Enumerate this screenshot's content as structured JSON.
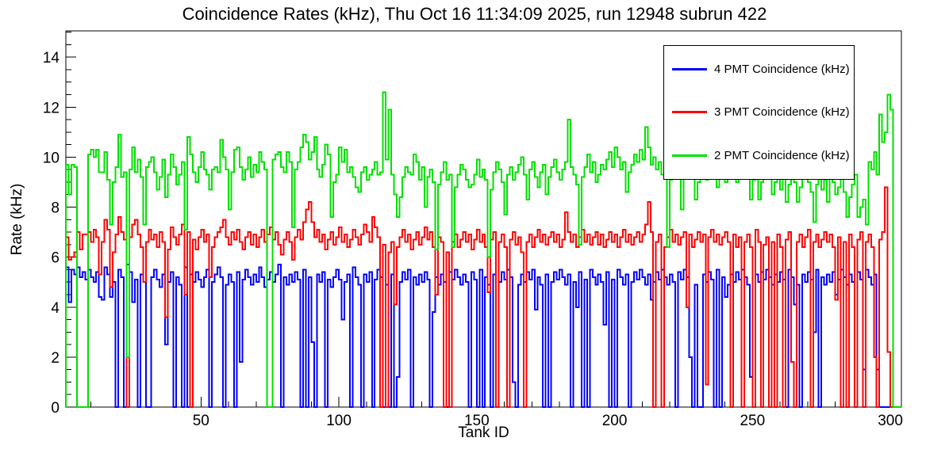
{
  "title": "Coincidence Rates (kHz), Thu Oct 16 11:34:09 2025, run 12948 subrun 422",
  "legend": {
    "entries": [
      {
        "label": "4 PMT Coincidence (kHz)",
        "color": "#0000ff"
      },
      {
        "label": "3 PMT Coincidence (kHz)",
        "color": "#ff0000"
      },
      {
        "label": "2 PMT Coincidence (kHz)",
        "color": "#00e000"
      }
    ]
  },
  "chart_data": {
    "type": "line",
    "style": "step-histogram",
    "title": "Coincidence Rates (kHz), Thu Oct 16 11:34:09 2025, run 12948 subrun 422",
    "xlabel": "Tank ID",
    "ylabel": "Rate (kHz)",
    "xlim": [
      1,
      304
    ],
    "ylim": [
      0,
      15.05
    ],
    "xticks": [
      50,
      100,
      150,
      200,
      250,
      300
    ],
    "yticks": [
      0,
      2,
      4,
      6,
      8,
      10,
      12,
      14
    ],
    "x_minor_step": 10,
    "y_minor_step": 0.5,
    "x_bin_start": 1,
    "bin_width": 1,
    "grid": false,
    "legend_position": "top-right",
    "series": [
      {
        "name": "4 PMT Coincidence (kHz)",
        "color": "#0000ff",
        "values": [
          5.6,
          4.2,
          5.5,
          5.3,
          5.6,
          5.2,
          5.4,
          5.1,
          5.5,
          5.2,
          5.0,
          5.4,
          4.4,
          4.3,
          5.6,
          5.3,
          4.4,
          5.0,
          0,
          5.5,
          5.2,
          0,
          5.7,
          5.4,
          4.2,
          5.1,
          0,
          5.3,
          5.0,
          0,
          0,
          5.2,
          5.5,
          5.1,
          4.8,
          5.3,
          2.5,
          5.0,
          5.4,
          0,
          5.2,
          4.9,
          0,
          5.6,
          0,
          5.3,
          5.0,
          5.4,
          5.1,
          4.8,
          5.2,
          5.5,
          0,
          5.0,
          5.3,
          5.6,
          5.2,
          0,
          4.9,
          5.3,
          5.0,
          0,
          5.4,
          1.8,
          5.1,
          5.5,
          5.2,
          4.9,
          5.3,
          5.0,
          5.6,
          5.2,
          4.8,
          5.1,
          5.4,
          5.0,
          5.3,
          5.7,
          0,
          5.2,
          4.9,
          5.3,
          5.0,
          5.4,
          5.1,
          0,
          5.5,
          0,
          5.2,
          2.6,
          0,
          5.3,
          5.0,
          5.4,
          0,
          5.1,
          4.8,
          5.2,
          5.5,
          5.1,
          3.5,
          5.0,
          5.3,
          0,
          5.6,
          5.2,
          4.9,
          0,
          5.3,
          5.0,
          5.4,
          0,
          5.1,
          5.5,
          5.2,
          0,
          4.9,
          0,
          5.3,
          0,
          1.2,
          5.0,
          5.4,
          5.1,
          5.5,
          0,
          5.2,
          4.9,
          5.3,
          5.0,
          5.4,
          5.1,
          0,
          3.8,
          5.2,
          4.9,
          5.3,
          5.0,
          0,
          5.4,
          5.1,
          5.5,
          5.2,
          4.9,
          5.3,
          5.0,
          0,
          5.4,
          5.1,
          0,
          5.5,
          0,
          5.2,
          4.9,
          0,
          5.3,
          0,
          5.0,
          5.4,
          5.1,
          5.5,
          5.2,
          1.0,
          0,
          4.9,
          5.3,
          5.0,
          5.4,
          5.1,
          5.5,
          3.9,
          5.2,
          4.9,
          0,
          5.3,
          0,
          5.0,
          5.4,
          5.1,
          5.5,
          5.2,
          4.9,
          5.3,
          0,
          5.0,
          4.0,
          5.4,
          0,
          5.1,
          0,
          5.5,
          5.2,
          4.9,
          5.3,
          5.0,
          3.3,
          5.4,
          0,
          5.1,
          0,
          5.5,
          5.2,
          4.9,
          5.3,
          0,
          5.0,
          5.4,
          5.1,
          5.5,
          5.2,
          4.9,
          5.3,
          4.3,
          5.0,
          5.4,
          5.1,
          5.5,
          5.2,
          4.9,
          5.3,
          5.0,
          0,
          5.4,
          5.1,
          5.5,
          5.2,
          2.0,
          0,
          4.9,
          0,
          0,
          5.3,
          5.0,
          5.4,
          5.1,
          0,
          5.5,
          0,
          5.2,
          4.4,
          4.9,
          5.3,
          5.0,
          5.4,
          5.1,
          5.5,
          5.2,
          4.9,
          1.2,
          0,
          5.3,
          5.0,
          5.4,
          5.1,
          5.5,
          5.2,
          4.9,
          5.3,
          5.0,
          5.4,
          5.1,
          0,
          5.5,
          5.2,
          4.1,
          4.9,
          0,
          5.3,
          5.0,
          5.4,
          5.1,
          3.0,
          5.5,
          0,
          5.2,
          4.9,
          5.3,
          5.0,
          5.4,
          4.5,
          5.1,
          5.5,
          5.2,
          4.9,
          5.3,
          5.0,
          0,
          5.4,
          5.1,
          1.5,
          5.5,
          5.2,
          4.9,
          5.3,
          1.5,
          0,
          0,
          0,
          0,
          0,
          0,
          0,
          0
        ]
      },
      {
        "name": "3 PMT Coincidence (kHz)",
        "color": "#ff0000",
        "values": [
          6.8,
          5.9,
          6.0,
          6.2,
          7.0,
          6.3,
          6.9,
          6.9,
          7.0,
          6.6,
          7.1,
          6.8,
          5.3,
          6.6,
          7.5,
          7.1,
          4.8,
          6.2,
          6.9,
          7.6,
          7.0,
          6.7,
          0,
          6.8,
          7.3,
          7.5,
          6.9,
          6.4,
          5.0,
          6.6,
          7.1,
          6.7,
          6.9,
          6.4,
          7.0,
          6.6,
          3.6,
          6.3,
          7.2,
          6.8,
          6.5,
          6.9,
          7.3,
          4.5,
          7.0,
          0,
          6.7,
          6.3,
          6.8,
          7.1,
          6.6,
          6.9,
          5.2,
          6.4,
          6.8,
          7.0,
          7.2,
          7.5,
          6.8,
          6.5,
          7.0,
          6.7,
          7.1,
          6.6,
          6.3,
          6.8,
          7.0,
          6.5,
          6.9,
          6.4,
          6.8,
          7.1,
          6.6,
          6.9,
          7.2,
          6.7,
          7.0,
          6.5,
          6.1,
          6.7,
          7.0,
          6.6,
          5.9,
          6.8,
          7.1,
          6.7,
          7.4,
          7.9,
          8.2,
          7.4,
          6.8,
          7.1,
          6.6,
          6.9,
          6.3,
          6.7,
          7.0,
          6.5,
          6.8,
          7.2,
          6.6,
          6.9,
          6.4,
          6.7,
          7.1,
          6.8,
          6.5,
          6.9,
          7.3,
          7.0,
          6.6,
          7.6,
          7.2,
          6.8,
          0,
          6.5,
          0,
          6.2,
          6.6,
          4.1,
          6.4,
          6.8,
          7.1,
          6.6,
          6.9,
          6.3,
          6.7,
          7.0,
          6.5,
          6.8,
          7.2,
          6.7,
          7.0,
          6.4,
          4.5,
          6.8,
          6.6,
          0,
          6.2,
          0,
          6.6,
          6.9,
          6.4,
          6.7,
          7.0,
          6.6,
          6.9,
          6.3,
          6.7,
          7.1,
          6.6,
          6.9,
          6.4,
          4.6,
          6.7,
          7.0,
          0,
          6.6,
          6.9,
          6.4,
          0,
          6.7,
          7.0,
          6.5,
          6.8,
          6.2,
          0,
          6.6,
          6.9,
          6.4,
          6.8,
          7.1,
          6.6,
          6.9,
          6.5,
          6.8,
          7.0,
          6.6,
          6.9,
          6.4,
          6.7,
          7.8,
          7.0,
          6.6,
          6.9,
          6.4,
          6.8,
          7.1,
          6.6,
          6.9,
          6.5,
          6.8,
          7.0,
          6.5,
          6.9,
          6.4,
          6.7,
          7.0,
          6.6,
          6.9,
          6.4,
          6.8,
          7.1,
          6.6,
          6.9,
          6.5,
          6.8,
          7.0,
          6.6,
          6.9,
          7.3,
          8.2,
          7.0,
          0,
          6.6,
          6.9,
          0,
          6.4,
          6.8,
          7.1,
          6.6,
          6.9,
          6.5,
          6.8,
          7.0,
          4.0,
          6.9,
          6.4,
          6.7,
          7.0,
          6.6,
          6.9,
          0.9,
          6.8,
          7.1,
          6.6,
          6.9,
          6.5,
          6.8,
          7.0,
          6.6,
          0,
          6.9,
          6.4,
          6.8,
          0,
          6.6,
          6.9,
          6.4,
          0,
          7.1,
          6.6,
          0,
          6.5,
          6.8,
          0,
          6.6,
          0,
          6.9,
          6.4,
          0,
          6.7,
          7.0,
          1.8,
          0,
          6.6,
          6.9,
          6.4,
          6.8,
          7.1,
          0,
          6.6,
          6.9,
          6.4,
          6.7,
          7.0,
          6.6,
          6.9,
          6.4,
          4.3,
          6.8,
          0,
          6.6,
          0,
          6.9,
          6.4,
          0,
          6.7,
          7.0,
          0,
          6.6,
          6.9,
          6.4,
          2.0,
          0,
          6.7,
          7.0,
          8.8,
          2.2,
          0,
          0,
          0,
          0
        ]
      },
      {
        "name": "2 PMT Coincidence (kHz)",
        "color": "#00e000",
        "values": [
          9.7,
          8.5,
          9.7,
          9.6,
          0,
          0,
          0,
          0,
          10.1,
          10.3,
          10.0,
          10.3,
          9.4,
          9.4,
          10.2,
          9.1,
          7.3,
          9.0,
          9.6,
          10.9,
          9.2,
          9.4,
          2.0,
          9.5,
          10.4,
          9.4,
          9.9,
          9.2,
          7.3,
          9.6,
          9.8,
          10.0,
          9.4,
          8.7,
          9.2,
          9.9,
          8.4,
          9.3,
          10.1,
          9.6,
          8.9,
          9.3,
          9.8,
          7.1,
          10.8,
          10.1,
          9.4,
          9.0,
          9.6,
          10.2,
          9.5,
          9.3,
          8.7,
          9.5,
          9.6,
          9.4,
          10.7,
          10.0,
          9.5,
          7.9,
          9.4,
          10.3,
          10.4,
          9.6,
          9.1,
          9.5,
          10.0,
          9.2,
          9.7,
          9.4,
          10.2,
          9.8,
          9.5,
          0,
          0,
          9.9,
          10.1,
          10.2,
          9.6,
          9.4,
          10.2,
          9.8,
          7.2,
          9.5,
          9.8,
          10.4,
          10.9,
          10.6,
          9.9,
          10.2,
          10.8,
          9.5,
          9.2,
          9.7,
          10.5,
          10.1,
          7.6,
          9.0,
          9.3,
          10.4,
          9.8,
          10.3,
          9.4,
          9.6,
          9.2,
          8.8,
          8.6,
          9.4,
          9.6,
          9.1,
          9.3,
          9.5,
          9.8,
          9.3,
          9.4,
          12.6,
          9.9,
          11.9,
          9.3,
          8.5,
          7.6,
          8.4,
          9.2,
          9.6,
          9.4,
          9.3,
          10.1,
          9.8,
          9.1,
          9.6,
          8.0,
          9.2,
          9.5,
          9.0,
          6.3,
          8.9,
          9.4,
          9.8,
          9.1,
          9.3,
          6.4,
          8.8,
          9.3,
          9.7,
          9.5,
          9.1,
          8.8,
          8.9,
          9.3,
          9.9,
          9.2,
          9.5,
          9.1,
          6.0,
          8.7,
          9.4,
          9.8,
          9.5,
          9.0,
          7.7,
          9.3,
          9.6,
          9.1,
          9.4,
          9.7,
          10.0,
          9.3,
          8.3,
          9.5,
          9.8,
          9.2,
          8.8,
          9.4,
          9.7,
          8.5,
          9.2,
          9.6,
          9.9,
          9.4,
          9.1,
          9.5,
          9.8,
          11.5,
          9.6,
          9.3,
          8.9,
          6.5,
          9.2,
          9.6,
          10.1,
          9.4,
          9.8,
          9.0,
          9.3,
          9.7,
          9.5,
          9.9,
          10.2,
          9.6,
          10.4,
          10.0,
          9.5,
          9.8,
          8.6,
          9.4,
          9.7,
          10.1,
          9.8,
          10.3,
          9.9,
          11.2,
          10.4,
          9.7,
          10.0,
          9.5,
          9.8,
          9.3,
          9.6,
          6.4,
          9.1,
          9.4,
          9.8,
          9.5,
          7.9,
          9.2,
          9.6,
          9.9,
          9.3,
          8.3,
          9.0,
          9.4,
          9.7,
          9.1,
          9.5,
          9.8,
          9.2,
          8.8,
          9.4,
          9.6,
          9.0,
          9.3,
          9.7,
          9.4,
          9.0,
          9.5,
          9.8,
          9.2,
          9.6,
          8.3,
          9.1,
          9.4,
          8.3,
          9.0,
          9.5,
          9.7,
          9.2,
          8.5,
          9.0,
          9.4,
          8.7,
          9.2,
          8.2,
          8.9,
          9.3,
          9.0,
          8.2,
          8.8,
          9.2,
          9.5,
          9.0,
          8.6,
          7.4,
          8.9,
          9.2,
          8.7,
          9.1,
          8.2,
          9.4,
          9.0,
          8.5,
          8.8,
          9.2,
          8.6,
          7.6,
          8.4,
          8.9,
          9.3,
          7.6,
          8.0,
          8.3,
          7.3,
          9.8,
          9.5,
          10.2,
          9.3,
          11.7,
          10.6,
          11.0,
          12.5,
          11.9,
          0,
          0,
          0
        ]
      }
    ]
  }
}
